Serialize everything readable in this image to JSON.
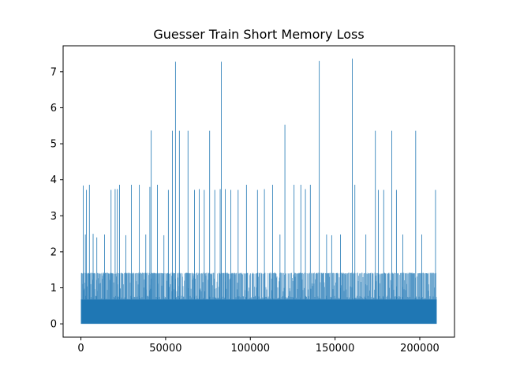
{
  "chart_data": {
    "type": "line",
    "title": "Guesser Train Short Memory Loss",
    "xlabel": "",
    "ylabel": "",
    "xlim": [
      -10500,
      220500
    ],
    "ylim": [
      -0.37,
      7.72
    ],
    "x_ticks": [
      0,
      50000,
      100000,
      150000,
      200000
    ],
    "x_tick_labels": [
      "0",
      "50000",
      "100000",
      "150000",
      "200000"
    ],
    "y_ticks": [
      0,
      1,
      2,
      3,
      4,
      5,
      6,
      7
    ],
    "y_tick_labels": [
      "0",
      "1",
      "2",
      "3",
      "4",
      "5",
      "6",
      "7"
    ],
    "grid": false,
    "series": [
      {
        "color": "#1f77b4",
        "x_range": [
          0,
          210000
        ],
        "dense_band": [
          0,
          0.68
        ],
        "noise_level": 1.42,
        "spikes": [
          {
            "x": 1400,
            "y": 3.84
          },
          {
            "x": 2600,
            "y": 2.48
          },
          {
            "x": 3300,
            "y": 3.72
          },
          {
            "x": 5000,
            "y": 3.86
          },
          {
            "x": 7200,
            "y": 2.5
          },
          {
            "x": 9400,
            "y": 2.4
          },
          {
            "x": 14000,
            "y": 2.48
          },
          {
            "x": 17800,
            "y": 3.72
          },
          {
            "x": 20200,
            "y": 3.74
          },
          {
            "x": 21500,
            "y": 3.74
          },
          {
            "x": 22800,
            "y": 3.86
          },
          {
            "x": 26500,
            "y": 2.46
          },
          {
            "x": 29800,
            "y": 3.86
          },
          {
            "x": 34500,
            "y": 3.86
          },
          {
            "x": 38300,
            "y": 2.48
          },
          {
            "x": 40700,
            "y": 3.8
          },
          {
            "x": 41500,
            "y": 5.37
          },
          {
            "x": 45200,
            "y": 3.86
          },
          {
            "x": 49000,
            "y": 2.46
          },
          {
            "x": 51600,
            "y": 3.72
          },
          {
            "x": 54000,
            "y": 5.36
          },
          {
            "x": 55800,
            "y": 7.28
          },
          {
            "x": 58100,
            "y": 5.36
          },
          {
            "x": 63200,
            "y": 5.36
          },
          {
            "x": 67000,
            "y": 3.72
          },
          {
            "x": 69800,
            "y": 3.74
          },
          {
            "x": 72800,
            "y": 3.72
          },
          {
            "x": 76000,
            "y": 5.36
          },
          {
            "x": 79000,
            "y": 3.72
          },
          {
            "x": 82200,
            "y": 3.74
          },
          {
            "x": 82900,
            "y": 7.28
          },
          {
            "x": 85200,
            "y": 3.74
          },
          {
            "x": 88500,
            "y": 3.72
          },
          {
            "x": 92800,
            "y": 3.72
          },
          {
            "x": 97700,
            "y": 3.86
          },
          {
            "x": 104200,
            "y": 3.72
          },
          {
            "x": 108300,
            "y": 3.74
          },
          {
            "x": 113100,
            "y": 3.86
          },
          {
            "x": 117500,
            "y": 2.48
          },
          {
            "x": 120400,
            "y": 5.53
          },
          {
            "x": 125800,
            "y": 3.86
          },
          {
            "x": 129800,
            "y": 3.86
          },
          {
            "x": 132500,
            "y": 3.74
          },
          {
            "x": 135400,
            "y": 3.86
          },
          {
            "x": 140700,
            "y": 7.3
          },
          {
            "x": 145000,
            "y": 2.48
          },
          {
            "x": 148000,
            "y": 2.46
          },
          {
            "x": 153200,
            "y": 2.48
          },
          {
            "x": 160200,
            "y": 7.36
          },
          {
            "x": 161700,
            "y": 3.86
          },
          {
            "x": 168200,
            "y": 2.48
          },
          {
            "x": 173800,
            "y": 5.36
          },
          {
            "x": 175500,
            "y": 3.72
          },
          {
            "x": 178700,
            "y": 3.72
          },
          {
            "x": 183500,
            "y": 5.36
          },
          {
            "x": 186200,
            "y": 3.72
          },
          {
            "x": 190000,
            "y": 2.48
          },
          {
            "x": 197600,
            "y": 5.36
          },
          {
            "x": 201200,
            "y": 2.48
          },
          {
            "x": 209300,
            "y": 3.72
          }
        ]
      }
    ]
  }
}
